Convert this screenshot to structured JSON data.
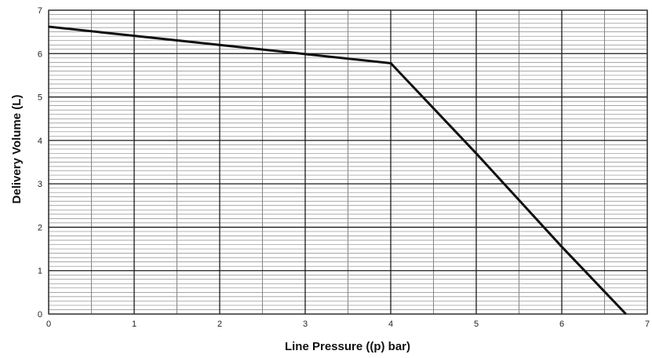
{
  "chart_data": {
    "type": "line",
    "title": "",
    "xlabel": "Line Pressure ((p) bar)",
    "ylabel": "Delivery Volume (L)",
    "xlim": [
      0,
      7
    ],
    "ylim": [
      0,
      7
    ],
    "x_ticks": [
      "0",
      "1",
      "2",
      "3",
      "4",
      "5",
      "6",
      "7"
    ],
    "y_ticks": [
      "0",
      "1",
      "2",
      "3",
      "4",
      "5",
      "6",
      "7"
    ],
    "grid": true,
    "legend": "none",
    "series": [
      {
        "x": [
          0,
          1,
          2,
          3,
          4,
          5,
          6,
          6.75
        ],
        "y": [
          6.62,
          6.41,
          6.2,
          5.99,
          5.78,
          3.7,
          1.55,
          0
        ],
        "color": "#111111"
      }
    ]
  }
}
